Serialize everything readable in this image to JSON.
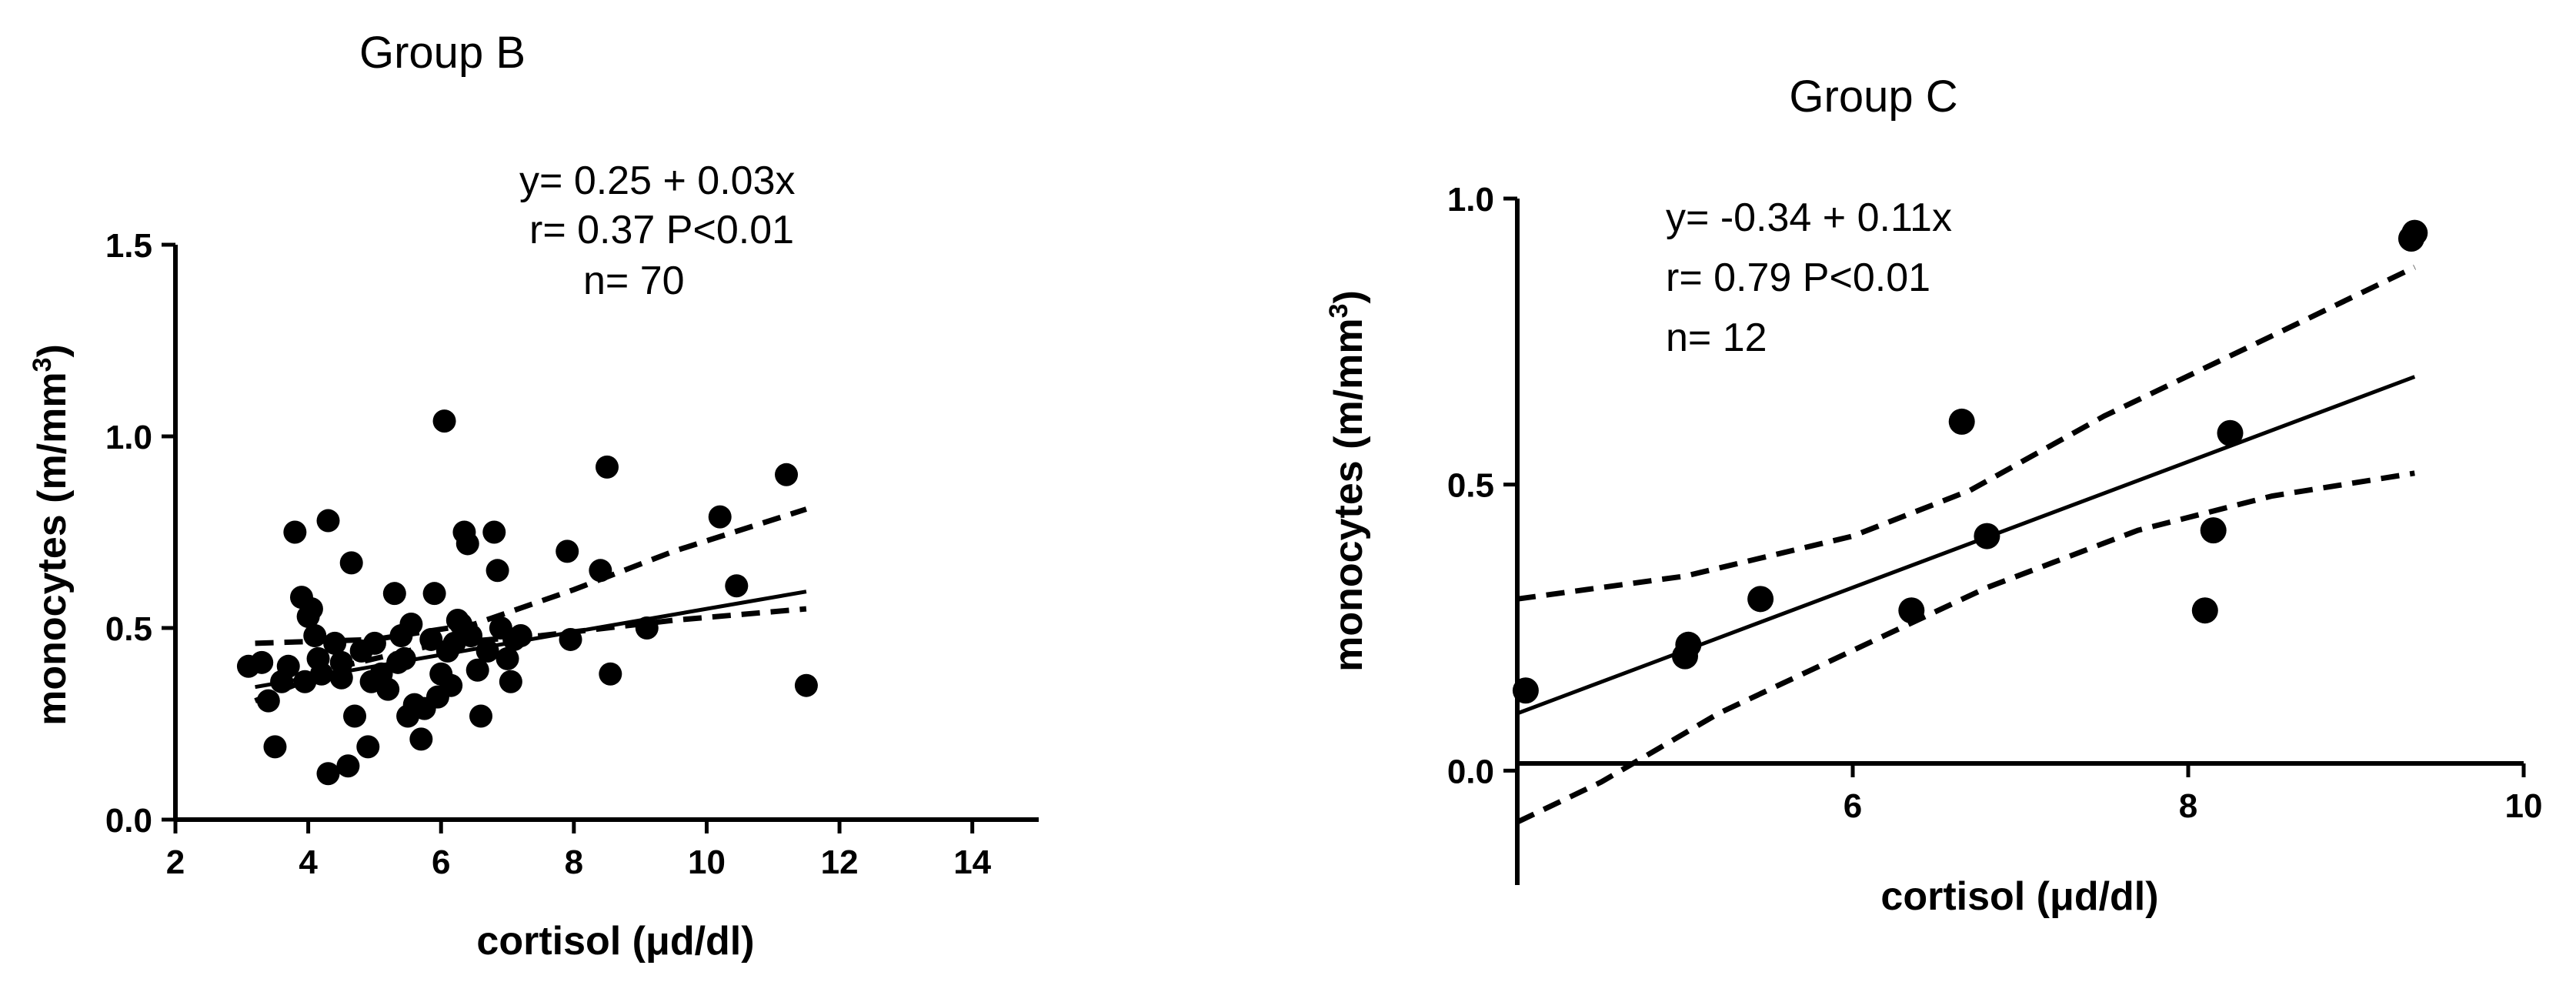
{
  "chart_data": [
    {
      "type": "scatter",
      "title": "Group B",
      "xlabel": "cortisol (μd/dl)",
      "ylabel": "monocytes (m/mm",
      "ylabel_sup": "3",
      "ylabel_tail": ")",
      "xlim": [
        2,
        15
      ],
      "ylim": [
        0,
        1.5
      ],
      "xticks": [
        2,
        4,
        6,
        8,
        10,
        12,
        14
      ],
      "xtick_labels": [
        "2",
        "4",
        "6",
        "8",
        "10",
        "12",
        "14"
      ],
      "yticks": [
        0,
        0.5,
        1.0,
        1.5
      ],
      "ytick_labels": [
        "0.0",
        "0.5",
        "1.0",
        "1.5"
      ],
      "annotations": [
        "y= 0.25 + 0.03x",
        "r= 0.37 P<0.01",
        "n= 70"
      ],
      "fit": {
        "intercept": 0.25,
        "slope": 0.03,
        "x_range": [
          3.2,
          11.5
        ]
      },
      "ci_upper": [
        [
          3.2,
          0.46
        ],
        [
          5,
          0.47
        ],
        [
          6.5,
          0.51
        ],
        [
          8,
          0.6
        ],
        [
          9.5,
          0.7
        ],
        [
          11.5,
          0.81
        ]
      ],
      "ci_lower": [
        [
          3.2,
          0.31
        ],
        [
          4.5,
          0.4
        ],
        [
          6,
          0.46
        ],
        [
          7.5,
          0.48
        ],
        [
          9.5,
          0.52
        ],
        [
          11.5,
          0.55
        ]
      ],
      "points": [
        [
          3.1,
          0.4
        ],
        [
          3.3,
          0.41
        ],
        [
          3.4,
          0.31
        ],
        [
          3.5,
          0.19
        ],
        [
          3.6,
          0.36
        ],
        [
          3.7,
          0.4
        ],
        [
          3.8,
          0.75
        ],
        [
          3.9,
          0.58
        ],
        [
          3.95,
          0.36
        ],
        [
          4.0,
          0.53
        ],
        [
          4.05,
          0.55
        ],
        [
          4.1,
          0.48
        ],
        [
          4.15,
          0.42
        ],
        [
          4.2,
          0.38
        ],
        [
          4.3,
          0.78
        ],
        [
          4.3,
          0.12
        ],
        [
          4.4,
          0.46
        ],
        [
          4.5,
          0.41
        ],
        [
          4.5,
          0.37
        ],
        [
          4.6,
          0.14
        ],
        [
          4.65,
          0.67
        ],
        [
          4.7,
          0.27
        ],
        [
          4.8,
          0.44
        ],
        [
          4.9,
          0.19
        ],
        [
          4.95,
          0.36
        ],
        [
          5.0,
          0.46
        ],
        [
          5.1,
          0.38
        ],
        [
          5.2,
          0.34
        ],
        [
          5.3,
          0.59
        ],
        [
          5.35,
          0.41
        ],
        [
          5.4,
          0.48
        ],
        [
          5.5,
          0.27
        ],
        [
          5.55,
          0.51
        ],
        [
          5.6,
          0.3
        ],
        [
          5.7,
          0.21
        ],
        [
          5.75,
          0.29
        ],
        [
          5.85,
          0.47
        ],
        [
          5.9,
          0.59
        ],
        [
          5.95,
          0.32
        ],
        [
          6.0,
          0.38
        ],
        [
          6.05,
          1.04
        ],
        [
          6.1,
          0.44
        ],
        [
          6.2,
          0.46
        ],
        [
          6.25,
          0.52
        ],
        [
          6.3,
          0.51
        ],
        [
          6.35,
          0.75
        ],
        [
          6.4,
          0.72
        ],
        [
          6.45,
          0.48
        ],
        [
          6.55,
          0.39
        ],
        [
          6.6,
          0.27
        ],
        [
          6.7,
          0.44
        ],
        [
          6.8,
          0.75
        ],
        [
          6.85,
          0.65
        ],
        [
          6.9,
          0.5
        ],
        [
          7.0,
          0.42
        ],
        [
          7.05,
          0.36
        ],
        [
          7.1,
          0.47
        ],
        [
          7.2,
          0.48
        ],
        [
          7.9,
          0.7
        ],
        [
          7.95,
          0.47
        ],
        [
          8.4,
          0.65
        ],
        [
          8.5,
          0.92
        ],
        [
          8.55,
          0.38
        ],
        [
          9.1,
          0.5
        ],
        [
          10.2,
          0.79
        ],
        [
          10.45,
          0.61
        ],
        [
          11.2,
          0.9
        ],
        [
          11.5,
          0.35
        ],
        [
          5.45,
          0.42
        ],
        [
          6.15,
          0.35
        ]
      ]
    },
    {
      "type": "scatter",
      "title": "Group C",
      "xlabel": "cortisol (μd/dl)",
      "ylabel": "monocytes (m/mm",
      "ylabel_sup": "3",
      "ylabel_tail": ")",
      "xlim": [
        4,
        10
      ],
      "ylim": [
        -0.2,
        1.0
      ],
      "xticks": [
        6,
        8,
        10
      ],
      "xtick_labels": [
        "6",
        "8",
        "10"
      ],
      "yticks": [
        0,
        0.5,
        1.0
      ],
      "ytick_labels": [
        "0.0",
        "0.5",
        "1.0"
      ],
      "annotations": [
        "y= -0.34 + 0.11x",
        "r= 0.79 P<0.01",
        "n= 12"
      ],
      "fit": {
        "intercept": -0.34,
        "slope": 0.11,
        "x_range": [
          4,
          9.35
        ]
      },
      "ci_upper": [
        [
          4,
          0.3
        ],
        [
          5,
          0.34
        ],
        [
          6,
          0.41
        ],
        [
          6.7,
          0.49
        ],
        [
          7.5,
          0.62
        ],
        [
          8.5,
          0.76
        ],
        [
          9.35,
          0.88
        ]
      ],
      "ci_lower": [
        [
          4,
          -0.09
        ],
        [
          4.5,
          -0.02
        ],
        [
          5.2,
          0.1
        ],
        [
          6,
          0.21
        ],
        [
          6.8,
          0.32
        ],
        [
          7.7,
          0.42
        ],
        [
          8.5,
          0.48
        ],
        [
          9.35,
          0.52
        ]
      ],
      "points": [
        [
          4.05,
          0.14
        ],
        [
          5.0,
          0.2
        ],
        [
          5.02,
          0.22
        ],
        [
          5.45,
          0.3
        ],
        [
          6.35,
          0.28
        ],
        [
          6.65,
          0.61
        ],
        [
          6.8,
          0.41
        ],
        [
          8.1,
          0.28
        ],
        [
          8.15,
          0.42
        ],
        [
          8.25,
          0.59
        ],
        [
          9.35,
          0.94
        ],
        [
          9.33,
          0.93
        ]
      ]
    }
  ]
}
